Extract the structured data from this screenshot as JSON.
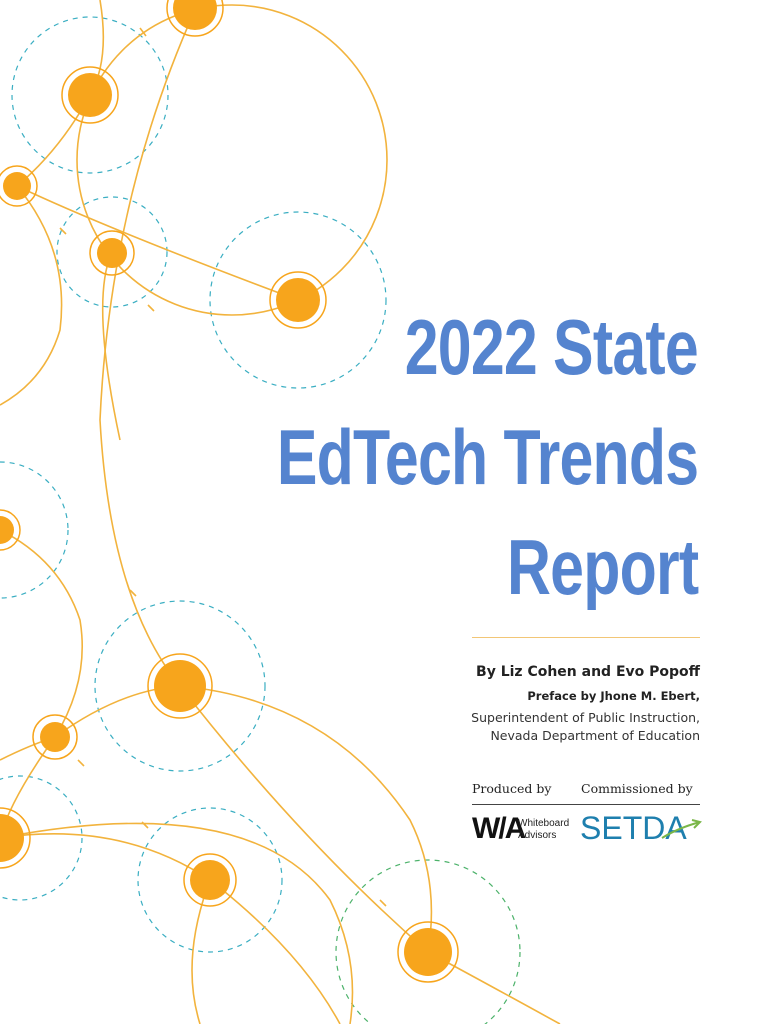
{
  "title": {
    "line1": "2022 State",
    "line2": "EdTech Trends",
    "line3": "Report"
  },
  "authors": "By Liz Cohen and Evo Popoff",
  "preface": {
    "line": "Preface by Jhone M. Ebert,",
    "role": "Superintendent of Public Instruction,",
    "org": "Nevada Department of Education"
  },
  "credits": {
    "produced_by": "Produced by",
    "commissioned_by": "Commissioned by"
  },
  "logos": {
    "whiteboard_mark": "W/A",
    "whiteboard_name_1": "Whiteboard",
    "whiteboard_name_2": "Advisors",
    "setda": "SETDA"
  },
  "colors": {
    "title_blue": "#5584cf",
    "node_orange": "#f7a51c",
    "line_orange": "#f2b33d",
    "dashed_teal": "#3aaec2",
    "dashed_green": "#4cb26a",
    "setda_blue": "#1e7fae"
  }
}
